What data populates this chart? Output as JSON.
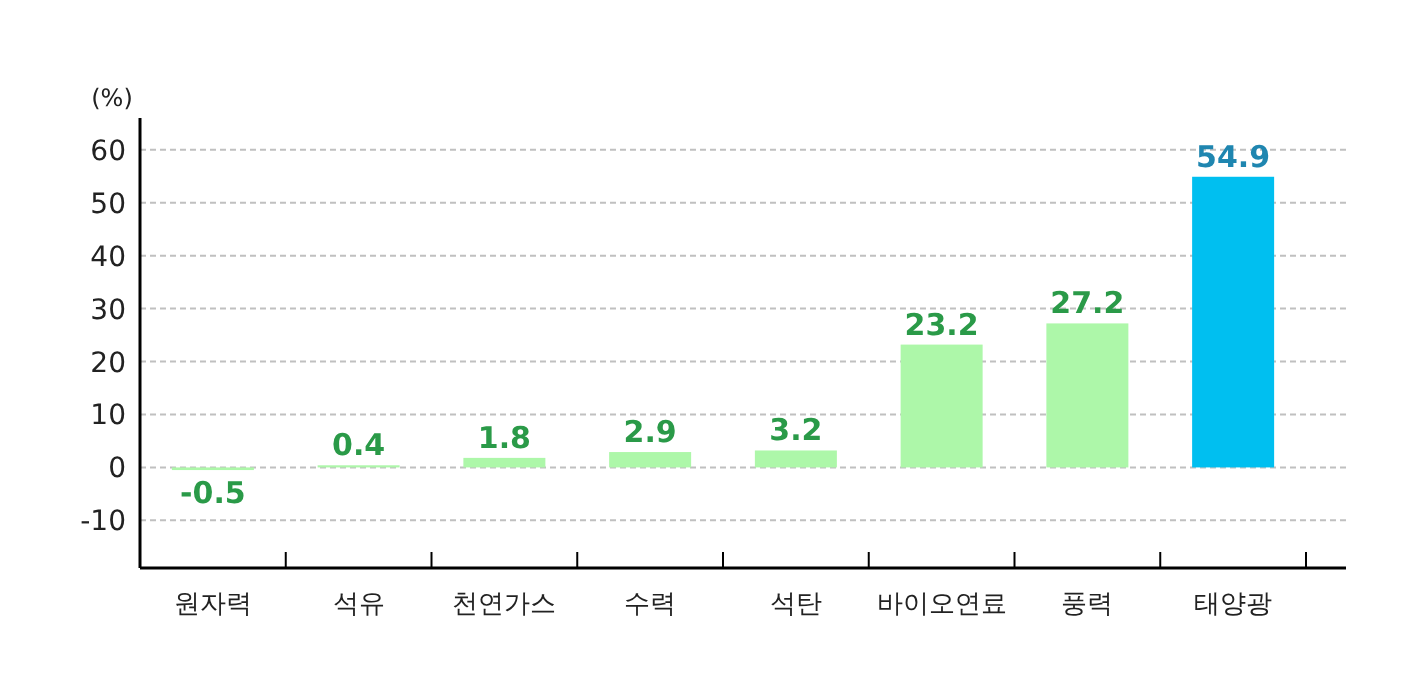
{
  "chart_data": {
    "type": "bar",
    "ylabel": "(%)",
    "categories": [
      "원자력",
      "석유",
      "천연가스",
      "수력",
      "석탄",
      "바이오연료",
      "풍력",
      "태양광"
    ],
    "values": [
      -0.5,
      0.4,
      1.8,
      2.9,
      3.2,
      23.2,
      27.2,
      54.9
    ],
    "colors": [
      "#adf7a9",
      "#adf7a9",
      "#adf7a9",
      "#adf7a9",
      "#adf7a9",
      "#adf7a9",
      "#adf7a9",
      "#00bff0"
    ],
    "ylim": [
      -19,
      66
    ],
    "yticks": [
      -10,
      0,
      10,
      20,
      30,
      40,
      50,
      60
    ],
    "grid": "y",
    "data_labels": true
  }
}
